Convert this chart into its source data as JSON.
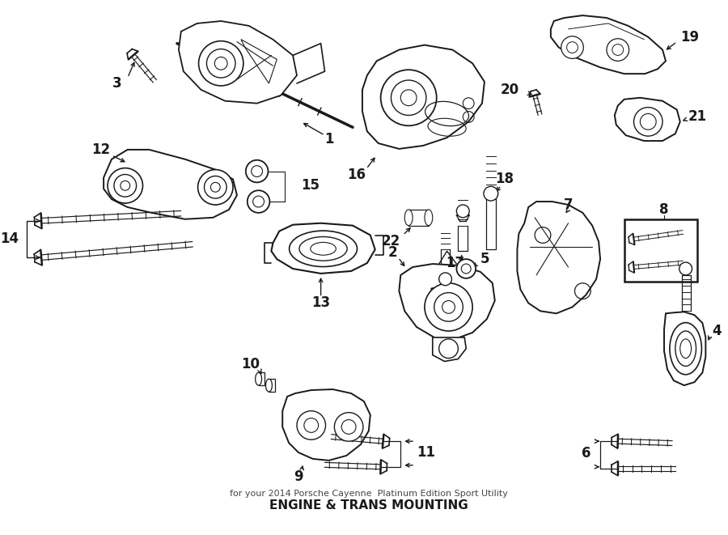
{
  "title": "ENGINE & TRANS MOUNTING",
  "subtitle": "for your 2014 Porsche Cayenne  Platinum Edition Sport Utility",
  "bg_color": "#ffffff",
  "line_color": "#1a1a1a",
  "fig_width": 9.0,
  "fig_height": 6.61,
  "dpi": 100,
  "label_fontsize": 12,
  "note_fontsize": 8.5
}
